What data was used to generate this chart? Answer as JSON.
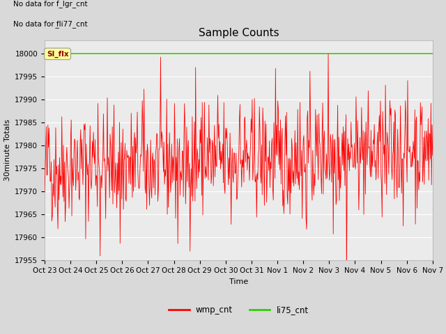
{
  "title": "Sample Counts",
  "ylabel": "30minute Totals",
  "xlabel": "Time",
  "yticks": [
    17955,
    17960,
    17965,
    17970,
    17975,
    17980,
    17985,
    17990,
    17995,
    18000
  ],
  "ylim": [
    17955,
    18003
  ],
  "xtick_labels": [
    "Oct 23",
    "Oct 24",
    "Oct 25",
    "Oct 26",
    "Oct 27",
    "Oct 28",
    "Oct 29",
    "Oct 30",
    "Oct 31",
    "Nov 1",
    "Nov 2",
    "Nov 3",
    "Nov 4",
    "Nov 5",
    "Nov 6",
    "Nov 7"
  ],
  "green_line_value": 18000,
  "annotation1": "No data for f_lgr_cnt",
  "annotation2": "No data for f̲li77_cnt",
  "si_flx_label": "SI_flx",
  "legend_entries": [
    "wmp_cnt",
    "li75_cnt"
  ],
  "red_line_color": "#ff0000",
  "green_line_color": "#33cc00",
  "background_color": "#d9d9d9",
  "plot_bg_color": "#ebebeb",
  "title_fontsize": 11,
  "axis_label_fontsize": 8,
  "tick_fontsize": 7.5,
  "num_points": 700,
  "seed": 42,
  "base_value": 17975,
  "noise_scale": 6,
  "grid_color": "#ffffff",
  "figsize": [
    6.4,
    4.8
  ],
  "dpi": 100
}
